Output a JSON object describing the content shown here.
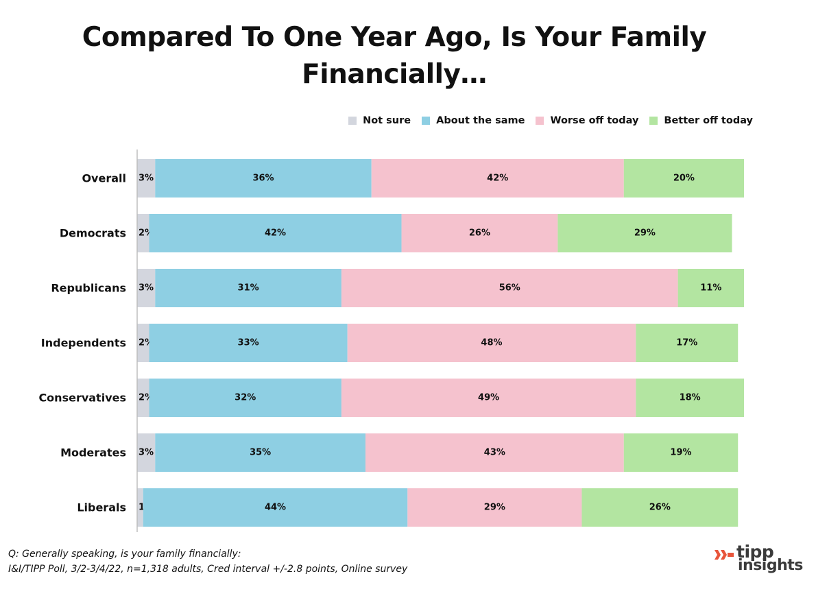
{
  "title_line1": "Compared To One Year Ago, Is Your Family",
  "title_line2": "Financially…",
  "footnote": {
    "question": "Q:  Generally speaking, is your family financially:",
    "source": "I&I/TIPP Poll, 3/2-3/4/22, n=1,318 adults, Cred interval +/-2.8 points, Online survey"
  },
  "logo": {
    "line1": "tipp",
    "line2": "insights"
  },
  "chart_data": {
    "type": "bar",
    "orientation": "horizontal",
    "stacked": true,
    "categories": [
      "Overall",
      "Democrats",
      "Republicans",
      "Independents",
      "Conservatives",
      "Moderates",
      "Liberals"
    ],
    "series": [
      {
        "name": "Not sure",
        "values": [
          3,
          2,
          3,
          2,
          2,
          3,
          1
        ],
        "color": "#d3d6de"
      },
      {
        "name": "About the same",
        "values": [
          36,
          42,
          31,
          33,
          32,
          35,
          44
        ],
        "color": "#8ecfe3"
      },
      {
        "name": "Worse off today",
        "values": [
          42,
          26,
          56,
          48,
          49,
          43,
          29
        ],
        "color": "#f5c2ce"
      },
      {
        "name": "Better off today",
        "values": [
          20,
          29,
          11,
          17,
          18,
          19,
          26
        ],
        "color": "#b3e5a1"
      }
    ],
    "value_suffix": "%",
    "xlim": [
      0,
      101
    ],
    "grid": false,
    "legend_position": "top-right"
  }
}
